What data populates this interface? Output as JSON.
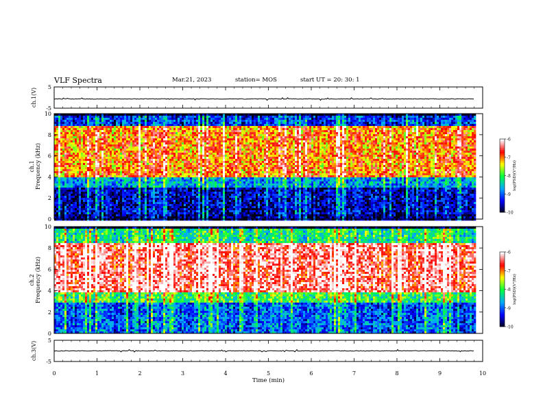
{
  "header": {
    "title": "VLF Spectra",
    "date": "Mar.21, 2023",
    "station": "station= MOS",
    "start_time": "start UT = 20: 30: 1"
  },
  "colors": {
    "background": "#ffffff",
    "axis": "#000000",
    "colormap": [
      "#000014",
      "#0000ff",
      "#00a8ff",
      "#00ff40",
      "#ffff00",
      "#ff0000",
      "#ffffff"
    ]
  },
  "chart_data": [
    {
      "id": "ch1-waveform",
      "type": "line",
      "ylabel": "ch.1(V)",
      "ylim": [
        -5,
        5
      ],
      "yticks": [
        "5",
        "-5"
      ],
      "x": [
        0,
        1,
        2,
        3,
        4,
        5,
        6,
        7,
        8,
        9,
        9.8
      ],
      "y": [
        0,
        0,
        0,
        0,
        0,
        0,
        0,
        0,
        0,
        0,
        0
      ]
    },
    {
      "id": "ch1-spectrogram",
      "type": "heatmap",
      "ylabel": "ch.1 Frequency (kHz)",
      "ylim": [
        0,
        10
      ],
      "yticks": [
        "0",
        "2",
        "4",
        "6",
        "8",
        "10"
      ],
      "xlim": [
        0,
        10
      ],
      "data_xlim": [
        0,
        9.8
      ],
      "colorbar": {
        "label": "log(PSD)(V²/Hz)",
        "ticks": [
          "-6",
          "-7",
          "-8",
          "-9",
          "-10"
        ],
        "range": [
          -10,
          -6
        ]
      },
      "description_levels": {
        "0-0.5 kHz": -9.5,
        "0.5-3 kHz": -9.3,
        "3-4 kHz": -8.5,
        "4-9 kHz": -6.8,
        "9-10 kHz": -9.0
      }
    },
    {
      "id": "ch2-spectrogram",
      "type": "heatmap",
      "ylabel": "ch.2 Frequency (kHz)",
      "ylim": [
        0,
        10
      ],
      "yticks": [
        "0",
        "2",
        "4",
        "6",
        "8",
        "10"
      ],
      "xlim": [
        0,
        10
      ],
      "data_xlim": [
        0,
        9.8
      ],
      "colorbar": {
        "label": "log(PSD)(V²/Hz)",
        "ticks": [
          "-6",
          "-7",
          "-8",
          "-9",
          "-10"
        ],
        "range": [
          -10,
          -6
        ]
      },
      "description_levels": {
        "0-3 kHz": -8.8,
        "3-4 kHz": -7.8,
        "4-8.5 kHz": -6.2,
        "8.5-10 kHz": -8.0
      }
    },
    {
      "id": "ch3-waveform",
      "type": "line",
      "ylabel": "ch.3(V)",
      "ylim": [
        -5,
        5
      ],
      "yticks": [
        "5",
        "-5"
      ],
      "x": [
        0,
        1,
        2,
        3,
        4,
        5,
        6,
        7,
        8,
        9,
        9.8
      ],
      "y": [
        0,
        0,
        0,
        0,
        0,
        0,
        0,
        0,
        0,
        0,
        0
      ]
    }
  ],
  "xaxis": {
    "label": "Time (min)",
    "ticks": [
      "0",
      "1",
      "2",
      "3",
      "4",
      "5",
      "6",
      "7",
      "8",
      "9",
      "10"
    ],
    "xlim": [
      0,
      10
    ]
  }
}
